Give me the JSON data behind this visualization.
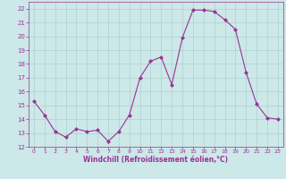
{
  "x": [
    0,
    1,
    2,
    3,
    4,
    5,
    6,
    7,
    8,
    9,
    10,
    11,
    12,
    13,
    14,
    15,
    16,
    17,
    18,
    19,
    20,
    21,
    22,
    23
  ],
  "y": [
    15.3,
    14.3,
    13.1,
    12.7,
    13.3,
    13.1,
    13.2,
    12.4,
    13.1,
    14.3,
    17.0,
    18.2,
    18.5,
    16.5,
    19.9,
    21.9,
    21.9,
    21.8,
    21.2,
    20.5,
    17.4,
    15.1,
    14.1,
    14.0
  ],
  "line_color": "#993399",
  "marker": "D",
  "marker_size": 2.0,
  "bg_color": "#cce8e8",
  "grid_color": "#b0d0d0",
  "xlabel": "Windchill (Refroidissement éolien,°C)",
  "xlabel_color": "#993399",
  "tick_color": "#993399",
  "ylim": [
    12,
    22.5
  ],
  "xlim": [
    -0.5,
    23.5
  ],
  "yticks": [
    12,
    13,
    14,
    15,
    16,
    17,
    18,
    19,
    20,
    21,
    22
  ],
  "xticks": [
    0,
    1,
    2,
    3,
    4,
    5,
    6,
    7,
    8,
    9,
    10,
    11,
    12,
    13,
    14,
    15,
    16,
    17,
    18,
    19,
    20,
    21,
    22,
    23
  ]
}
